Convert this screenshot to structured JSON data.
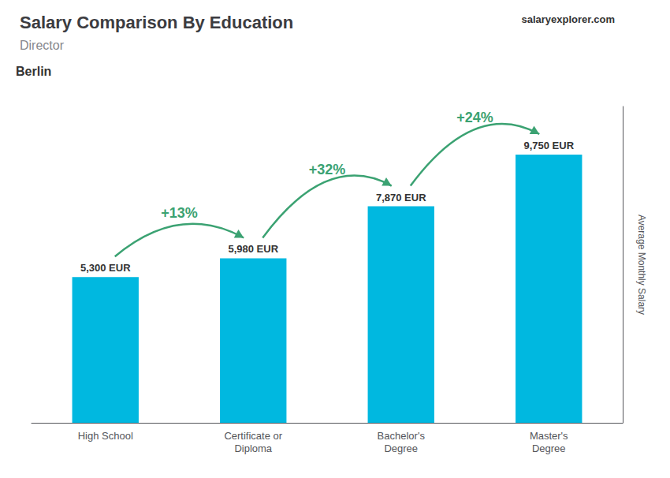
{
  "chart_data": {
    "type": "bar",
    "title": "Salary Comparison By Education",
    "subtitle": "Director",
    "location": "Berlin",
    "source": [
      "salary",
      "explorer.com"
    ],
    "ylabel": "Average Monthly Salary",
    "categories": [
      "High School",
      "Certificate or\nDiploma",
      "Bachelor's\nDegree",
      "Master's\nDegree"
    ],
    "values": [
      5300,
      5980,
      7870,
      9750
    ],
    "value_labels": [
      "5,300 EUR",
      "5,980 EUR",
      "7,870 EUR",
      "9,750 EUR"
    ],
    "data_labels": true,
    "change_labels": [
      "+13%",
      "+32%",
      "+24%"
    ],
    "color": "#00b8e0",
    "ylim": [
      0,
      11500
    ],
    "tick_labels": "x",
    "grid": false
  }
}
